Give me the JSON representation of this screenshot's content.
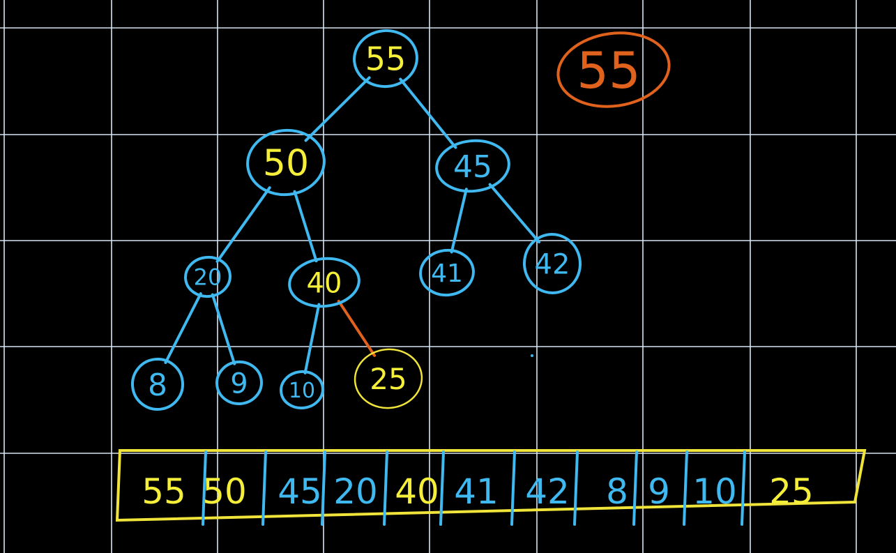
{
  "colors": {
    "background": "#000000",
    "grid": "#d8e6f5",
    "node_stroke": "#40b8f0",
    "root_text": "#f5ef3a",
    "node_text": "#f5ef3a",
    "blue_text": "#40b8f0",
    "highlight": "#f0e33a",
    "removed": "#e0621c"
  },
  "removed_value": "55",
  "tree": {
    "nodes": [
      {
        "id": "n55",
        "label": "55",
        "text_color": "yellow"
      },
      {
        "id": "n50",
        "label": "50",
        "text_color": "yellow"
      },
      {
        "id": "n45",
        "label": "45",
        "text_color": "blue"
      },
      {
        "id": "n20",
        "label": "20",
        "text_color": "blue"
      },
      {
        "id": "n40",
        "label": "40",
        "text_color": "yellow"
      },
      {
        "id": "n41",
        "label": "41",
        "text_color": "blue"
      },
      {
        "id": "n42",
        "label": "42",
        "text_color": "blue"
      },
      {
        "id": "n8",
        "label": "8",
        "text_color": "blue"
      },
      {
        "id": "n9",
        "label": "9",
        "text_color": "blue"
      },
      {
        "id": "n10",
        "label": "10",
        "text_color": "blue"
      },
      {
        "id": "n25",
        "label": "25",
        "text_color": "yellow"
      }
    ],
    "edges": [
      {
        "from": "n55",
        "to": "n50",
        "color": "blue"
      },
      {
        "from": "n55",
        "to": "n45",
        "color": "blue"
      },
      {
        "from": "n50",
        "to": "n20",
        "color": "blue"
      },
      {
        "from": "n50",
        "to": "n40",
        "color": "blue"
      },
      {
        "from": "n45",
        "to": "n41",
        "color": "blue"
      },
      {
        "from": "n45",
        "to": "n42",
        "color": "blue"
      },
      {
        "from": "n20",
        "to": "n8",
        "color": "blue"
      },
      {
        "from": "n20",
        "to": "n9",
        "color": "blue"
      },
      {
        "from": "n40",
        "to": "n10",
        "color": "blue"
      },
      {
        "from": "n40",
        "to": "n25",
        "color": "orange"
      }
    ]
  },
  "array": {
    "cells": [
      {
        "label": "55",
        "text_color": "yellow"
      },
      {
        "label": "50",
        "text_color": "yellow"
      },
      {
        "label": "45",
        "text_color": "blue"
      },
      {
        "label": "20",
        "text_color": "blue"
      },
      {
        "label": "40",
        "text_color": "yellow"
      },
      {
        "label": "41",
        "text_color": "blue"
      },
      {
        "label": "42",
        "text_color": "blue"
      },
      {
        "label": "8",
        "text_color": "blue"
      },
      {
        "label": "9",
        "text_color": "blue"
      },
      {
        "label": "10",
        "text_color": "blue"
      },
      {
        "label": "25",
        "text_color": "yellow"
      }
    ]
  }
}
